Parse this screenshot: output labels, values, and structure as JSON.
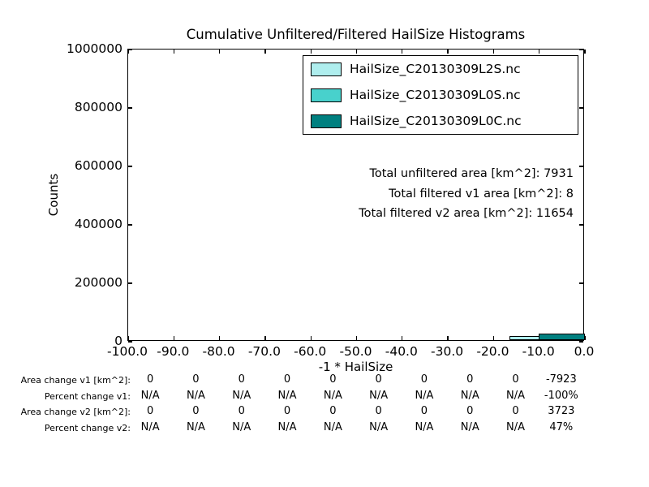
{
  "chart_data": {
    "type": "bar",
    "title": "Cumulative Unfiltered/Filtered HailSize Histograms",
    "xlabel": "-1 * HailSize",
    "ylabel": "Counts",
    "xlim": [
      -100.0,
      0.0
    ],
    "ylim": [
      0,
      1000000
    ],
    "grid": false,
    "legend_position": "upper right",
    "xticks": [
      "-100.0",
      "-90.0",
      "-80.0",
      "-70.0",
      "-60.0",
      "-50.0",
      "-40.0",
      "-30.0",
      "-20.0",
      "-10.0",
      "0.0"
    ],
    "yticks": [
      "0",
      "200000",
      "400000",
      "600000",
      "800000",
      "1000000"
    ],
    "legend": [
      {
        "label": "HailSize_C20130309L2S.nc",
        "color": "#afeeee"
      },
      {
        "label": "HailSize_C20130309L0S.nc",
        "color": "#48d1cc"
      },
      {
        "label": "HailSize_C20130309L0C.nc",
        "color": "#008080"
      }
    ],
    "series": [
      {
        "name": "HailSize_C20130309L2S.nc",
        "color": "#afeeee",
        "bars": [
          {
            "x0": -16.5,
            "x1": -10.0,
            "count": 13000
          }
        ]
      },
      {
        "name": "HailSize_C20130309L0S.nc",
        "color": "#48d1cc",
        "bars": []
      },
      {
        "name": "HailSize_C20130309L0C.nc",
        "color": "#008080",
        "bars": [
          {
            "x0": -10.1,
            "x1": 0.0,
            "count": 22000
          }
        ]
      }
    ],
    "annotations": [
      "Total unfiltered area [km^2]: 7931",
      "Total filtered v1 area [km^2]: 8",
      "Total filtered v2 area [km^2]: 11654"
    ],
    "stats_table": {
      "bin_centers": [
        -95,
        -85,
        -75,
        -65,
        -55,
        -45,
        -35,
        -25,
        -15,
        -5
      ],
      "rows": [
        {
          "label": "Area change v1 [km^2]:",
          "values": [
            "0",
            "0",
            "0",
            "0",
            "0",
            "0",
            "0",
            "0",
            "0",
            "-7923"
          ]
        },
        {
          "label": "Percent change v1:",
          "values": [
            "N/A",
            "N/A",
            "N/A",
            "N/A",
            "N/A",
            "N/A",
            "N/A",
            "N/A",
            "N/A",
            "-100%"
          ]
        },
        {
          "label": "Area change v2 [km^2]:",
          "values": [
            "0",
            "0",
            "0",
            "0",
            "0",
            "0",
            "0",
            "0",
            "0",
            "3723"
          ]
        },
        {
          "label": "Percent change v2:",
          "values": [
            "N/A",
            "N/A",
            "N/A",
            "N/A",
            "N/A",
            "N/A",
            "N/A",
            "N/A",
            "N/A",
            "47%"
          ]
        }
      ]
    },
    "colors": {
      "axes": "#000000",
      "background": "#ffffff"
    }
  }
}
